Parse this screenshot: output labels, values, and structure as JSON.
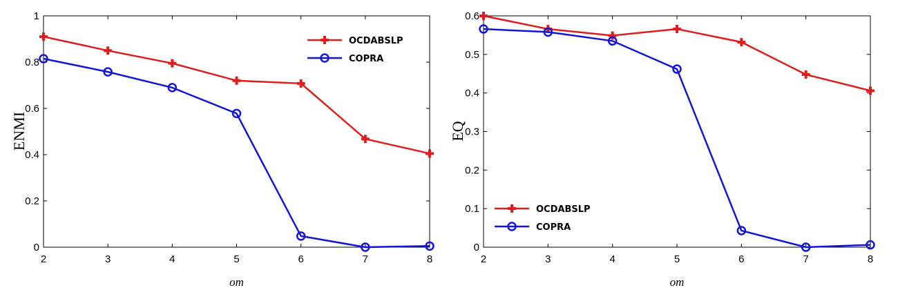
{
  "chart_data": [
    {
      "type": "line",
      "title": "",
      "xlabel": "om",
      "ylabel": "ENMI",
      "xlim": [
        2,
        8
      ],
      "ylim": [
        0,
        1
      ],
      "x": [
        2,
        3,
        4,
        5,
        6,
        7,
        8
      ],
      "xticks": [
        "2",
        "3",
        "4",
        "5",
        "6",
        "7",
        "8"
      ],
      "yticks": [
        "0",
        "0.2",
        "0.4",
        "0.6",
        "0.8",
        "1"
      ],
      "legend_position": "top-right",
      "series": [
        {
          "name": "OCDABSLP",
          "color": "#e01c1c",
          "marker": "plus",
          "values": [
            0.91,
            0.85,
            0.795,
            0.72,
            0.708,
            0.468,
            0.405
          ]
        },
        {
          "name": "COPRA",
          "color": "#1414d8",
          "marker": "circle",
          "values": [
            0.815,
            0.758,
            0.69,
            0.578,
            0.048,
            0.0,
            0.005
          ]
        }
      ]
    },
    {
      "type": "line",
      "title": "",
      "xlabel": "om",
      "ylabel": "EQ",
      "xlim": [
        2,
        8
      ],
      "ylim": [
        0,
        0.6
      ],
      "x": [
        2,
        3,
        4,
        5,
        6,
        7,
        8
      ],
      "xticks": [
        "2",
        "3",
        "4",
        "5",
        "6",
        "7",
        "8"
      ],
      "yticks": [
        "0",
        "0.1",
        "0.2",
        "0.3",
        "0.4",
        "0.5",
        "0.6"
      ],
      "legend_position": "bottom-left",
      "series": [
        {
          "name": "OCDABSLP",
          "color": "#e01c1c",
          "marker": "plus",
          "values": [
            0.6,
            0.566,
            0.549,
            0.566,
            0.532,
            0.448,
            0.406
          ]
        },
        {
          "name": "COPRA",
          "color": "#1414d8",
          "marker": "circle",
          "values": [
            0.566,
            0.558,
            0.535,
            0.462,
            0.043,
            0.0,
            0.006
          ]
        }
      ]
    }
  ]
}
